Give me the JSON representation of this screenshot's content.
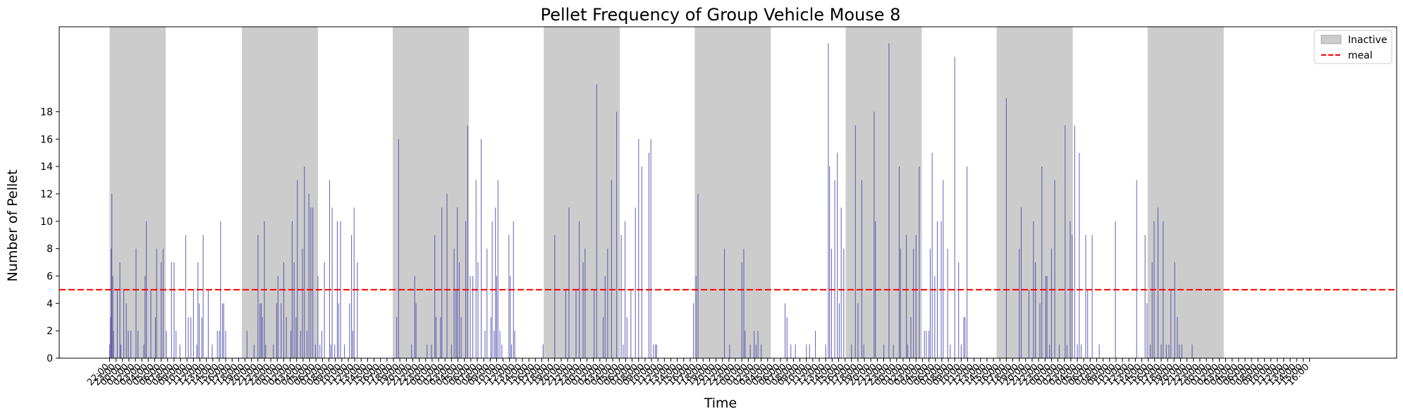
{
  "chart_data": {
    "type": "bar",
    "title": "Pellet Frequency of Group Vehicle Mouse 8",
    "xlabel": "Time",
    "ylabel": "Number of Pellet",
    "ylim": [
      0,
      24.2
    ],
    "yticks": [
      0,
      2,
      4,
      6,
      8,
      10,
      12,
      14,
      16,
      18
    ],
    "xlim_hours": [
      -7.8,
      199.5
    ],
    "start_time": "22:00",
    "tick_step_hours": 1,
    "tick_count": 187,
    "bar_color": "#3f3fa8",
    "meal_threshold": 5,
    "meal_color": "#ff0000",
    "inactive_color": "#cccccc",
    "inactive_periods": [
      [
        0,
        8.7
      ],
      [
        20.5,
        32.3
      ],
      [
        43.9,
        55.7
      ],
      [
        67.3,
        79.1
      ],
      [
        90.7,
        102.5
      ],
      [
        114.1,
        125.9
      ],
      [
        137.5,
        149.3
      ],
      [
        160.9,
        172.7
      ]
    ],
    "legend": [
      {
        "label": "Inactive",
        "kind": "patch"
      },
      {
        "label": "meal",
        "kind": "dashed-line"
      }
    ],
    "bars": [
      [
        0.0,
        1
      ],
      [
        0.15,
        3
      ],
      [
        0.25,
        8
      ],
      [
        0.35,
        12
      ],
      [
        0.5,
        6
      ],
      [
        0.6,
        2
      ],
      [
        1.2,
        5
      ],
      [
        1.6,
        7
      ],
      [
        1.75,
        1
      ],
      [
        2.2,
        5
      ],
      [
        2.6,
        4
      ],
      [
        2.9,
        2
      ],
      [
        3.3,
        2
      ],
      [
        4.1,
        8
      ],
      [
        4.4,
        2
      ],
      [
        5.3,
        1
      ],
      [
        5.5,
        6
      ],
      [
        5.7,
        10
      ],
      [
        6.4,
        5
      ],
      [
        7.1,
        3
      ],
      [
        7.3,
        8
      ],
      [
        8.0,
        7
      ],
      [
        8.3,
        8
      ],
      [
        8.8,
        2
      ],
      [
        9.6,
        7
      ],
      [
        10.0,
        7
      ],
      [
        10.3,
        2
      ],
      [
        10.9,
        1
      ],
      [
        11.8,
        9
      ],
      [
        12.2,
        3
      ],
      [
        12.6,
        3
      ],
      [
        13.0,
        5
      ],
      [
        13.5,
        1
      ],
      [
        13.7,
        7
      ],
      [
        13.9,
        4
      ],
      [
        14.3,
        3
      ],
      [
        14.5,
        9
      ],
      [
        15.3,
        5
      ],
      [
        15.9,
        1
      ],
      [
        16.7,
        2
      ],
      [
        17.0,
        2
      ],
      [
        17.2,
        10
      ],
      [
        17.5,
        4
      ],
      [
        17.7,
        4
      ],
      [
        18.0,
        2
      ],
      [
        21.3,
        2
      ],
      [
        22.4,
        1
      ],
      [
        23.0,
        9
      ],
      [
        23.3,
        4
      ],
      [
        23.5,
        4
      ],
      [
        23.7,
        3
      ],
      [
        24.0,
        10
      ],
      [
        24.2,
        1
      ],
      [
        25.4,
        1
      ],
      [
        25.9,
        4
      ],
      [
        26.1,
        6
      ],
      [
        26.6,
        4
      ],
      [
        27.0,
        7
      ],
      [
        27.4,
        3
      ],
      [
        28.1,
        2
      ],
      [
        28.3,
        10
      ],
      [
        28.6,
        7
      ],
      [
        28.9,
        3
      ],
      [
        29.1,
        13
      ],
      [
        29.6,
        2
      ],
      [
        29.9,
        8
      ],
      [
        30.2,
        14
      ],
      [
        30.6,
        2
      ],
      [
        30.9,
        12
      ],
      [
        31.2,
        11
      ],
      [
        31.5,
        11
      ],
      [
        31.9,
        1
      ],
      [
        32.3,
        6
      ],
      [
        32.6,
        1
      ],
      [
        32.9,
        2
      ],
      [
        33.3,
        7
      ],
      [
        34.1,
        13
      ],
      [
        34.3,
        1
      ],
      [
        34.5,
        11
      ],
      [
        34.9,
        1
      ],
      [
        35.3,
        10
      ],
      [
        35.5,
        4
      ],
      [
        35.8,
        10
      ],
      [
        36.4,
        1
      ],
      [
        37.2,
        4
      ],
      [
        37.5,
        9
      ],
      [
        37.7,
        2
      ],
      [
        37.9,
        11
      ],
      [
        38.4,
        7
      ],
      [
        44.5,
        3
      ],
      [
        44.8,
        16
      ],
      [
        46.8,
        1
      ],
      [
        47.3,
        6
      ],
      [
        47.5,
        4
      ],
      [
        49.2,
        1
      ],
      [
        49.9,
        1
      ],
      [
        50.4,
        9
      ],
      [
        50.6,
        3
      ],
      [
        51.3,
        3
      ],
      [
        51.5,
        11
      ],
      [
        52.3,
        12
      ],
      [
        53.0,
        1
      ],
      [
        53.4,
        8
      ],
      [
        53.7,
        5
      ],
      [
        53.9,
        11
      ],
      [
        54.2,
        7
      ],
      [
        54.5,
        3
      ],
      [
        55.2,
        10
      ],
      [
        55.5,
        17
      ],
      [
        55.9,
        6
      ],
      [
        56.3,
        6
      ],
      [
        56.8,
        13
      ],
      [
        57.1,
        7
      ],
      [
        57.6,
        16
      ],
      [
        58.2,
        2
      ],
      [
        58.5,
        8
      ],
      [
        59.1,
        3
      ],
      [
        59.3,
        10
      ],
      [
        59.6,
        2
      ],
      [
        59.8,
        11
      ],
      [
        60.0,
        6
      ],
      [
        60.2,
        13
      ],
      [
        60.5,
        2
      ],
      [
        60.8,
        1
      ],
      [
        61.9,
        9
      ],
      [
        62.1,
        6
      ],
      [
        62.3,
        1
      ],
      [
        62.6,
        10
      ],
      [
        62.8,
        2
      ],
      [
        67.2,
        1
      ],
      [
        69.0,
        9
      ],
      [
        70.7,
        5
      ],
      [
        71.2,
        11
      ],
      [
        72.3,
        5
      ],
      [
        72.8,
        10
      ],
      [
        73.4,
        7
      ],
      [
        73.7,
        8
      ],
      [
        75.1,
        5
      ],
      [
        75.5,
        20
      ],
      [
        76.5,
        3
      ],
      [
        76.8,
        6
      ],
      [
        77.2,
        8
      ],
      [
        77.8,
        13
      ],
      [
        78.6,
        18
      ],
      [
        79.3,
        9
      ],
      [
        79.6,
        1
      ],
      [
        79.9,
        10
      ],
      [
        80.2,
        3
      ],
      [
        80.8,
        5
      ],
      [
        81.5,
        11
      ],
      [
        82.0,
        16
      ],
      [
        82.5,
        14
      ],
      [
        83.6,
        15
      ],
      [
        83.9,
        16
      ],
      [
        84.3,
        1
      ],
      [
        84.6,
        1
      ],
      [
        84.8,
        1
      ],
      [
        90.5,
        4
      ],
      [
        90.9,
        6
      ],
      [
        91.2,
        12
      ],
      [
        95.3,
        8
      ],
      [
        96.1,
        1
      ],
      [
        98.0,
        7
      ],
      [
        98.3,
        8
      ],
      [
        98.5,
        2
      ],
      [
        99.3,
        1
      ],
      [
        99.9,
        2
      ],
      [
        100.2,
        1
      ],
      [
        100.5,
        2
      ],
      [
        101.0,
        1
      ],
      [
        104.7,
        4
      ],
      [
        105.0,
        3
      ],
      [
        105.6,
        1
      ],
      [
        106.3,
        1
      ],
      [
        108.0,
        1
      ],
      [
        108.5,
        1
      ],
      [
        109.4,
        2
      ],
      [
        111.0,
        1
      ],
      [
        111.4,
        23
      ],
      [
        111.6,
        14
      ],
      [
        111.9,
        8
      ],
      [
        112.4,
        13
      ],
      [
        112.8,
        15
      ],
      [
        113.1,
        4
      ],
      [
        113.4,
        11
      ],
      [
        113.8,
        8
      ],
      [
        115.0,
        1
      ],
      [
        115.6,
        17
      ],
      [
        116.0,
        4
      ],
      [
        116.6,
        13
      ],
      [
        116.9,
        1
      ],
      [
        118.5,
        18
      ],
      [
        118.7,
        10
      ],
      [
        120.0,
        1
      ],
      [
        120.8,
        23
      ],
      [
        121.5,
        1
      ],
      [
        122.4,
        14
      ],
      [
        122.6,
        8
      ],
      [
        123.5,
        9
      ],
      [
        123.7,
        1
      ],
      [
        124.2,
        3
      ],
      [
        124.6,
        8
      ],
      [
        125.0,
        9
      ],
      [
        125.5,
        14
      ],
      [
        126.3,
        2
      ],
      [
        126.6,
        2
      ],
      [
        127.0,
        2
      ],
      [
        127.2,
        8
      ],
      [
        127.5,
        15
      ],
      [
        127.9,
        6
      ],
      [
        128.3,
        10
      ],
      [
        128.9,
        10
      ],
      [
        129.2,
        13
      ],
      [
        129.9,
        8
      ],
      [
        130.3,
        1
      ],
      [
        131.0,
        22
      ],
      [
        131.6,
        7
      ],
      [
        132.0,
        1
      ],
      [
        132.4,
        3
      ],
      [
        132.6,
        3
      ],
      [
        132.9,
        14
      ],
      [
        139.0,
        19
      ],
      [
        141.0,
        8
      ],
      [
        141.3,
        11
      ],
      [
        142.5,
        5
      ],
      [
        143.2,
        10
      ],
      [
        143.5,
        7
      ],
      [
        144.2,
        4
      ],
      [
        144.5,
        14
      ],
      [
        145.1,
        6
      ],
      [
        145.3,
        6
      ],
      [
        145.7,
        1
      ],
      [
        146.0,
        8
      ],
      [
        146.5,
        13
      ],
      [
        147.2,
        1
      ],
      [
        148.1,
        17
      ],
      [
        148.4,
        1
      ],
      [
        148.9,
        10
      ],
      [
        149.2,
        9
      ],
      [
        149.6,
        17
      ],
      [
        150.0,
        1
      ],
      [
        150.3,
        15
      ],
      [
        150.6,
        1
      ],
      [
        151.3,
        9
      ],
      [
        151.6,
        5
      ],
      [
        152.3,
        9
      ],
      [
        153.4,
        1
      ],
      [
        155.9,
        10
      ],
      [
        159.2,
        13
      ],
      [
        160.5,
        9
      ],
      [
        160.8,
        4
      ],
      [
        161.3,
        1
      ],
      [
        161.6,
        7
      ],
      [
        161.9,
        10
      ],
      [
        162.5,
        11
      ],
      [
        163.0,
        1
      ],
      [
        163.3,
        10
      ],
      [
        163.8,
        1
      ],
      [
        164.2,
        1
      ],
      [
        164.5,
        5
      ],
      [
        165.1,
        7
      ],
      [
        165.5,
        3
      ],
      [
        165.8,
        1
      ],
      [
        166.2,
        1
      ],
      [
        167.8,
        1
      ]
    ]
  }
}
